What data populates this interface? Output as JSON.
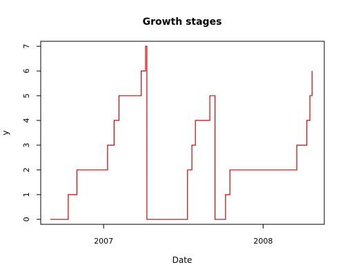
{
  "chart_data": {
    "type": "line",
    "style": "step",
    "title": "Growth stages",
    "xlabel": "Date",
    "ylabel": "y",
    "x_axis_type": "date",
    "xlim": [
      "2006-08-10",
      "2008-05-20"
    ],
    "ylim": [
      -0.2,
      7.2
    ],
    "x_ticks": [
      {
        "label": "2007",
        "date": "2007-01-01"
      },
      {
        "label": "2008",
        "date": "2008-01-01"
      }
    ],
    "y_ticks": [
      0,
      1,
      2,
      3,
      4,
      5,
      6,
      7
    ],
    "grid": false,
    "legend": "none",
    "line_color": "#cc0000",
    "series": [
      {
        "points": [
          {
            "x": "2006-09-01",
            "y": 0
          },
          {
            "x": "2006-10-12",
            "y": 0
          },
          {
            "x": "2006-10-12",
            "y": 1
          },
          {
            "x": "2006-11-01",
            "y": 1
          },
          {
            "x": "2006-11-01",
            "y": 2
          },
          {
            "x": "2007-01-10",
            "y": 2
          },
          {
            "x": "2007-01-10",
            "y": 3
          },
          {
            "x": "2007-01-25",
            "y": 3
          },
          {
            "x": "2007-01-25",
            "y": 4
          },
          {
            "x": "2007-02-05",
            "y": 4
          },
          {
            "x": "2007-02-05",
            "y": 5
          },
          {
            "x": "2007-03-28",
            "y": 5
          },
          {
            "x": "2007-03-28",
            "y": 6
          },
          {
            "x": "2007-04-07",
            "y": 6
          },
          {
            "x": "2007-04-07",
            "y": 7
          },
          {
            "x": "2007-04-10",
            "y": 7
          },
          {
            "x": "2007-04-10",
            "y": 0
          },
          {
            "x": "2007-07-12",
            "y": 0
          },
          {
            "x": "2007-07-12",
            "y": 2
          },
          {
            "x": "2007-07-22",
            "y": 2
          },
          {
            "x": "2007-07-22",
            "y": 3
          },
          {
            "x": "2007-07-30",
            "y": 3
          },
          {
            "x": "2007-07-30",
            "y": 4
          },
          {
            "x": "2007-09-01",
            "y": 4
          },
          {
            "x": "2007-09-01",
            "y": 5
          },
          {
            "x": "2007-09-13",
            "y": 5
          },
          {
            "x": "2007-09-13",
            "y": 0
          },
          {
            "x": "2007-10-07",
            "y": 0
          },
          {
            "x": "2007-10-07",
            "y": 1
          },
          {
            "x": "2007-10-17",
            "y": 1
          },
          {
            "x": "2007-10-17",
            "y": 2
          },
          {
            "x": "2008-03-18",
            "y": 2
          },
          {
            "x": "2008-03-18",
            "y": 3
          },
          {
            "x": "2008-04-10",
            "y": 3
          },
          {
            "x": "2008-04-10",
            "y": 4
          },
          {
            "x": "2008-04-17",
            "y": 4
          },
          {
            "x": "2008-04-17",
            "y": 5
          },
          {
            "x": "2008-04-22",
            "y": 5
          },
          {
            "x": "2008-04-22",
            "y": 6
          }
        ]
      }
    ]
  }
}
